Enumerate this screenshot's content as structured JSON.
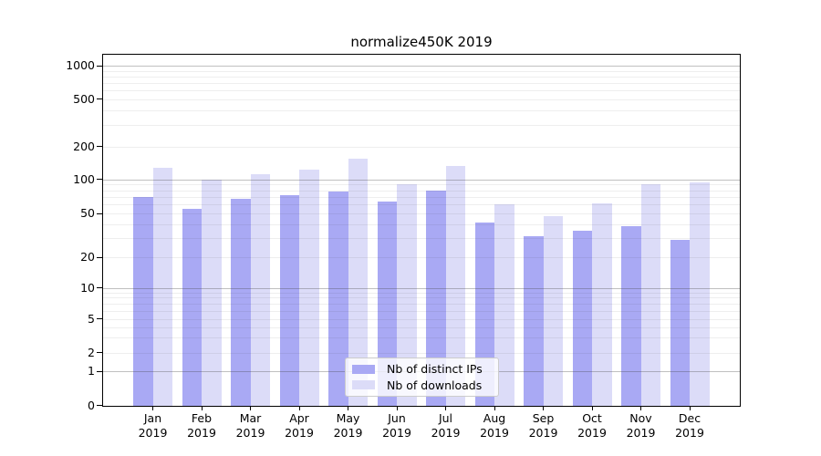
{
  "chart_data": {
    "type": "bar",
    "title": "normalize450K 2019",
    "categories": [
      "Jan",
      "Feb",
      "Mar",
      "Apr",
      "May",
      "Jun",
      "Jul",
      "Aug",
      "Sep",
      "Oct",
      "Nov",
      "Dec"
    ],
    "tick_label_year": "2019",
    "series": [
      {
        "name": "Nb of distinct IPs",
        "color": "#a9a9f4",
        "values": [
          70,
          55,
          67,
          72,
          78,
          64,
          79,
          41,
          31,
          35,
          38,
          29
        ]
      },
      {
        "name": "Nb of downloads",
        "color": "#dcdcf8",
        "values": [
          126,
          100,
          111,
          123,
          153,
          91,
          133,
          60,
          47,
          61,
          91,
          94
        ]
      }
    ],
    "yscale": "symlog",
    "yticks": [
      0,
      1,
      2,
      5,
      10,
      20,
      50,
      100,
      200,
      500,
      1000
    ],
    "yticks_major_grid": [
      1,
      10,
      100,
      1000
    ],
    "yticks_minor_grid": [
      3,
      4,
      6,
      7,
      8,
      9,
      30,
      40,
      60,
      70,
      80,
      90,
      300,
      400,
      600,
      700,
      800,
      900
    ],
    "ylim": [
      0,
      1250
    ],
    "grid": true,
    "legend_position": "lower-center"
  }
}
